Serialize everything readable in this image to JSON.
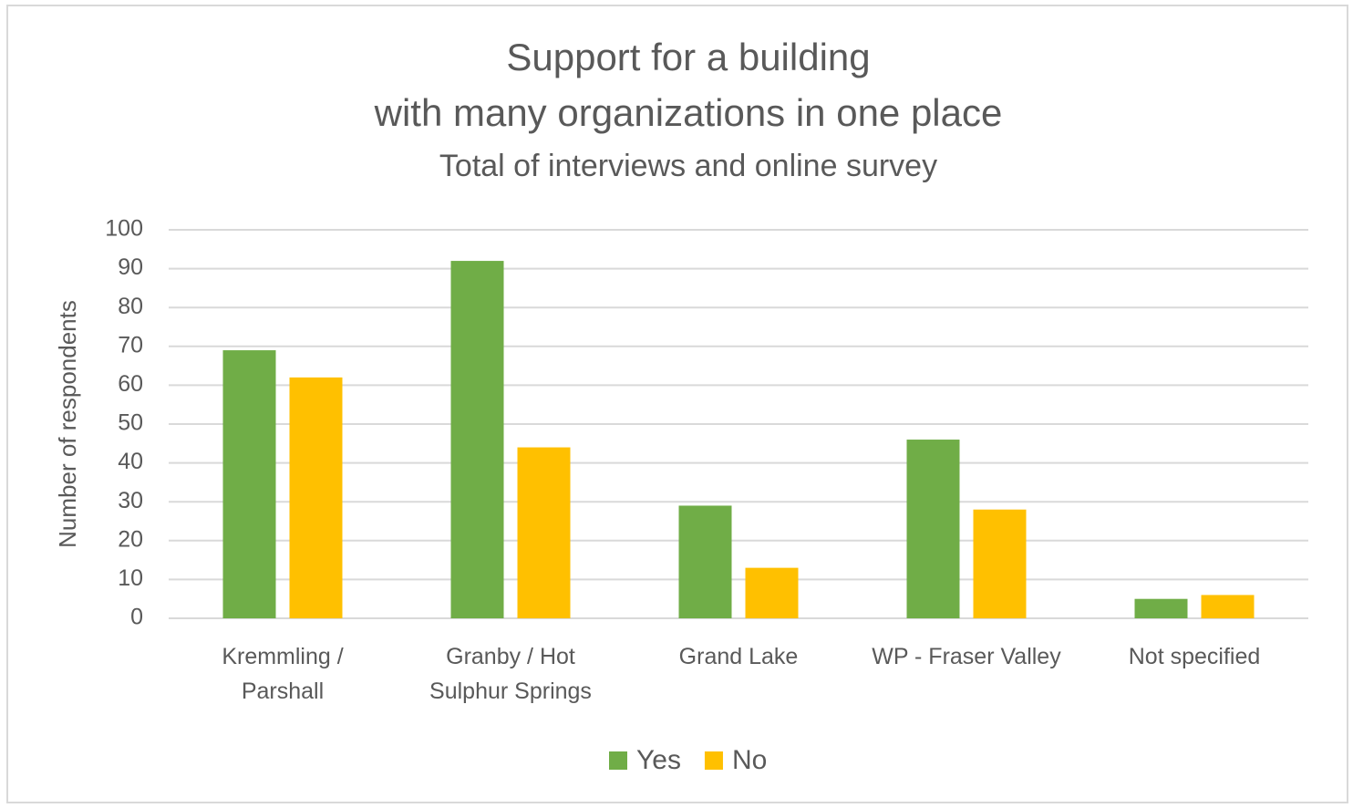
{
  "chart_data": {
    "type": "bar",
    "title": [
      "Support for a building",
      "with many organizations in one place"
    ],
    "subtitle": "Total of interviews and online survey",
    "ylabel": "Number of respondents",
    "categories": [
      "Kremmling / Parshall",
      "Granby / Hot Sulphur Springs",
      "Grand Lake",
      "WP - Fraser Valley",
      "Not specified"
    ],
    "series": [
      {
        "name": "Yes",
        "color": "#70ad47",
        "values": [
          69,
          92,
          29,
          46,
          5
        ]
      },
      {
        "name": "No",
        "color": "#ffc000",
        "values": [
          62,
          44,
          13,
          28,
          6
        ]
      }
    ],
    "ylim": [
      0,
      100
    ],
    "yticks": [
      0,
      10,
      20,
      30,
      40,
      50,
      60,
      70,
      80,
      90,
      100
    ],
    "grid": true,
    "legend": "bottom"
  }
}
